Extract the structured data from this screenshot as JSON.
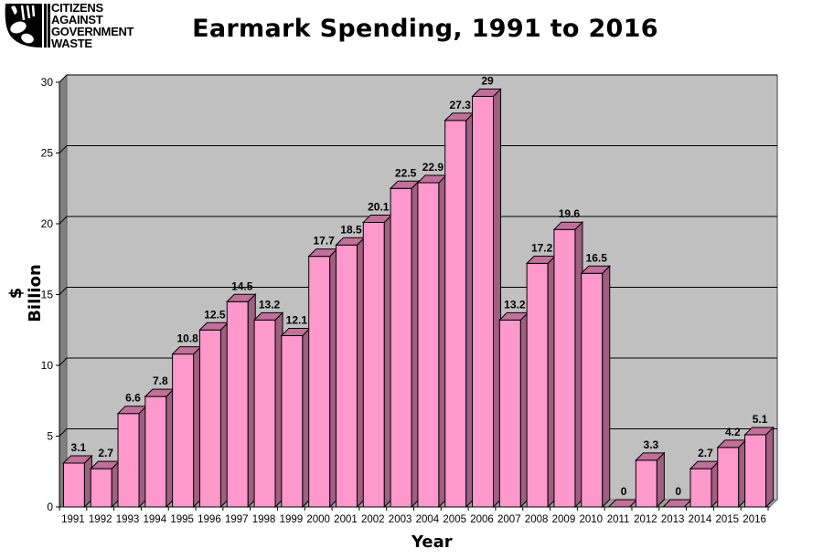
{
  "logo": {
    "lines": [
      "CITIZENS",
      "AGAINST",
      "GOVERNMENT",
      "WASTE"
    ],
    "icon": "cagw-pig-emblem-icon"
  },
  "chart_data": {
    "type": "bar",
    "style": "3d-column",
    "title": "Earmark Spending, 1991 to 2016",
    "xlabel": "Year",
    "ylabel": "$ Billion",
    "ylim": [
      0,
      30
    ],
    "yticks": [
      0,
      5,
      10,
      15,
      20,
      25,
      30
    ],
    "grid": true,
    "legend": null,
    "categories": [
      "1991",
      "1992",
      "1993",
      "1994",
      "1995",
      "1996",
      "1997",
      "1998",
      "1999",
      "2000",
      "2001",
      "2002",
      "2003",
      "2004",
      "2005",
      "2006",
      "2007",
      "2008",
      "2009",
      "2010",
      "2011",
      "2012",
      "2013",
      "2014",
      "2015",
      "2016"
    ],
    "values": [
      3.1,
      2.7,
      6.6,
      7.8,
      10.8,
      12.5,
      14.5,
      13.2,
      12.1,
      17.7,
      18.5,
      20.1,
      22.5,
      22.9,
      27.3,
      29,
      13.2,
      17.2,
      19.6,
      16.5,
      0,
      3.3,
      0,
      2.7,
      4.2,
      5.1
    ],
    "data_labels": [
      "3.1",
      "2.7",
      "6.6",
      "7.8",
      "10.8",
      "12.5",
      "14.5",
      "13.2",
      "12.1",
      "17.7",
      "18.5",
      "20.1",
      "22.5",
      "22.9",
      "27.3",
      "29",
      "13.2",
      "17.2",
      "19.6",
      "16.5",
      "0",
      "3.3",
      "0",
      "2.7",
      "4.2",
      "5.1"
    ]
  },
  "colors": {
    "bar_front": "#ff99cc",
    "bar_side": "#9e5f80",
    "bar_top": "#c07099",
    "plot_back": "#c0c0c0",
    "plot_side_wall": "#808080",
    "plot_floor": "#a0a0a0",
    "gridline": "#000000"
  }
}
